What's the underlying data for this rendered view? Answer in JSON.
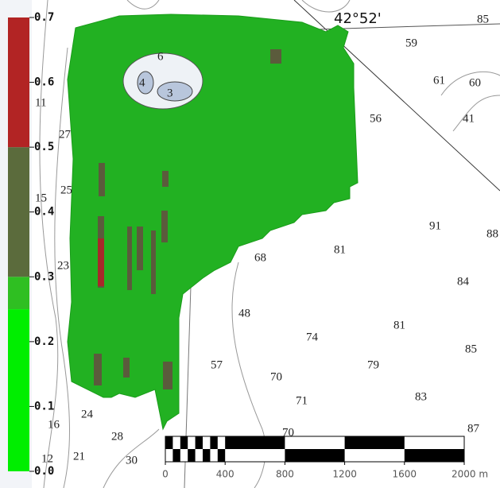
{
  "colorbar": {
    "range": [
      0,
      0.7
    ],
    "ticks": [
      {
        "value": 0,
        "label": "0.0"
      },
      0.1,
      0.2,
      0.3,
      0.4,
      0.5,
      0.6,
      0.7
    ],
    "bounds": [
      0,
      0.25,
      0.3,
      0.5,
      0.7
    ],
    "colors": [
      "#00ee00",
      "#2fbf22",
      "#5b6b3c",
      "#b22424"
    ]
  },
  "scale_bar": {
    "range": [
      0,
      2000
    ],
    "ticks": [
      0,
      400,
      800,
      1200,
      1600,
      {
        "value": 2000,
        "label": "2000 m"
      }
    ]
  },
  "map": {
    "latitude_label": "42°52'",
    "depth_labels": [
      "85",
      "59",
      "61",
      "60",
      "41",
      "56",
      "91",
      "81",
      "68",
      "88",
      "84",
      "48",
      "74",
      "81",
      "85",
      "57",
      "70",
      "79",
      "71",
      "83",
      "87",
      "24",
      "28",
      "21",
      "16",
      "12",
      "30",
      "70",
      "11",
      "27",
      "25",
      "15",
      "23",
      "6",
      "4",
      "3"
    ]
  }
}
